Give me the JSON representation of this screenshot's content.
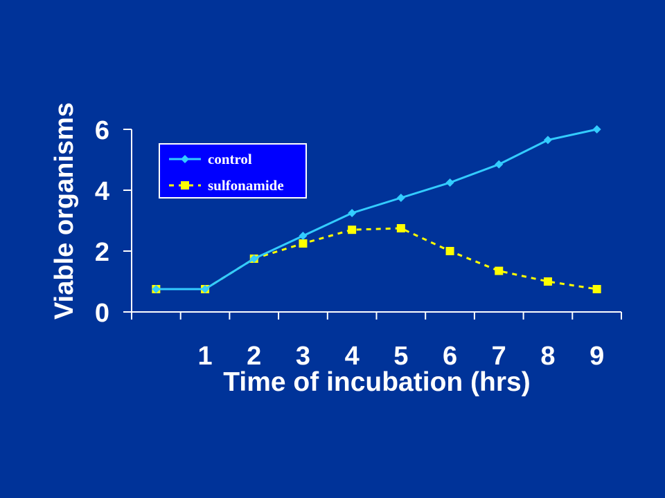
{
  "chart_data": {
    "type": "line",
    "title": "",
    "xlabel": "Time of incubation (hrs)",
    "ylabel": "Viable organisms",
    "x": [
      0,
      1,
      2,
      3,
      4,
      5,
      6,
      7,
      8,
      9
    ],
    "x_tick_labels": [
      "1",
      "2",
      "3",
      "4",
      "5",
      "6",
      "7",
      "8",
      "9"
    ],
    "y_tick_labels": [
      "0",
      "2",
      "4",
      "6"
    ],
    "ylim": [
      0,
      6
    ],
    "grid": false,
    "legend_position": "top-left",
    "series": [
      {
        "name": "control",
        "color": "#33ccff",
        "marker": "diamond",
        "line_style": "solid",
        "values": [
          0.75,
          0.75,
          1.75,
          2.5,
          3.25,
          3.75,
          4.25,
          4.85,
          5.65,
          6.0
        ]
      },
      {
        "name": "sulfonamide",
        "color": "#ffff00",
        "marker": "square",
        "line_style": "dashed",
        "values": [
          0.75,
          0.75,
          1.75,
          2.25,
          2.7,
          2.75,
          2.0,
          1.35,
          1.0,
          0.75
        ]
      }
    ]
  },
  "colors": {
    "background": "#003399",
    "axis": "#ffffff",
    "legend_background": "#0000ff"
  }
}
